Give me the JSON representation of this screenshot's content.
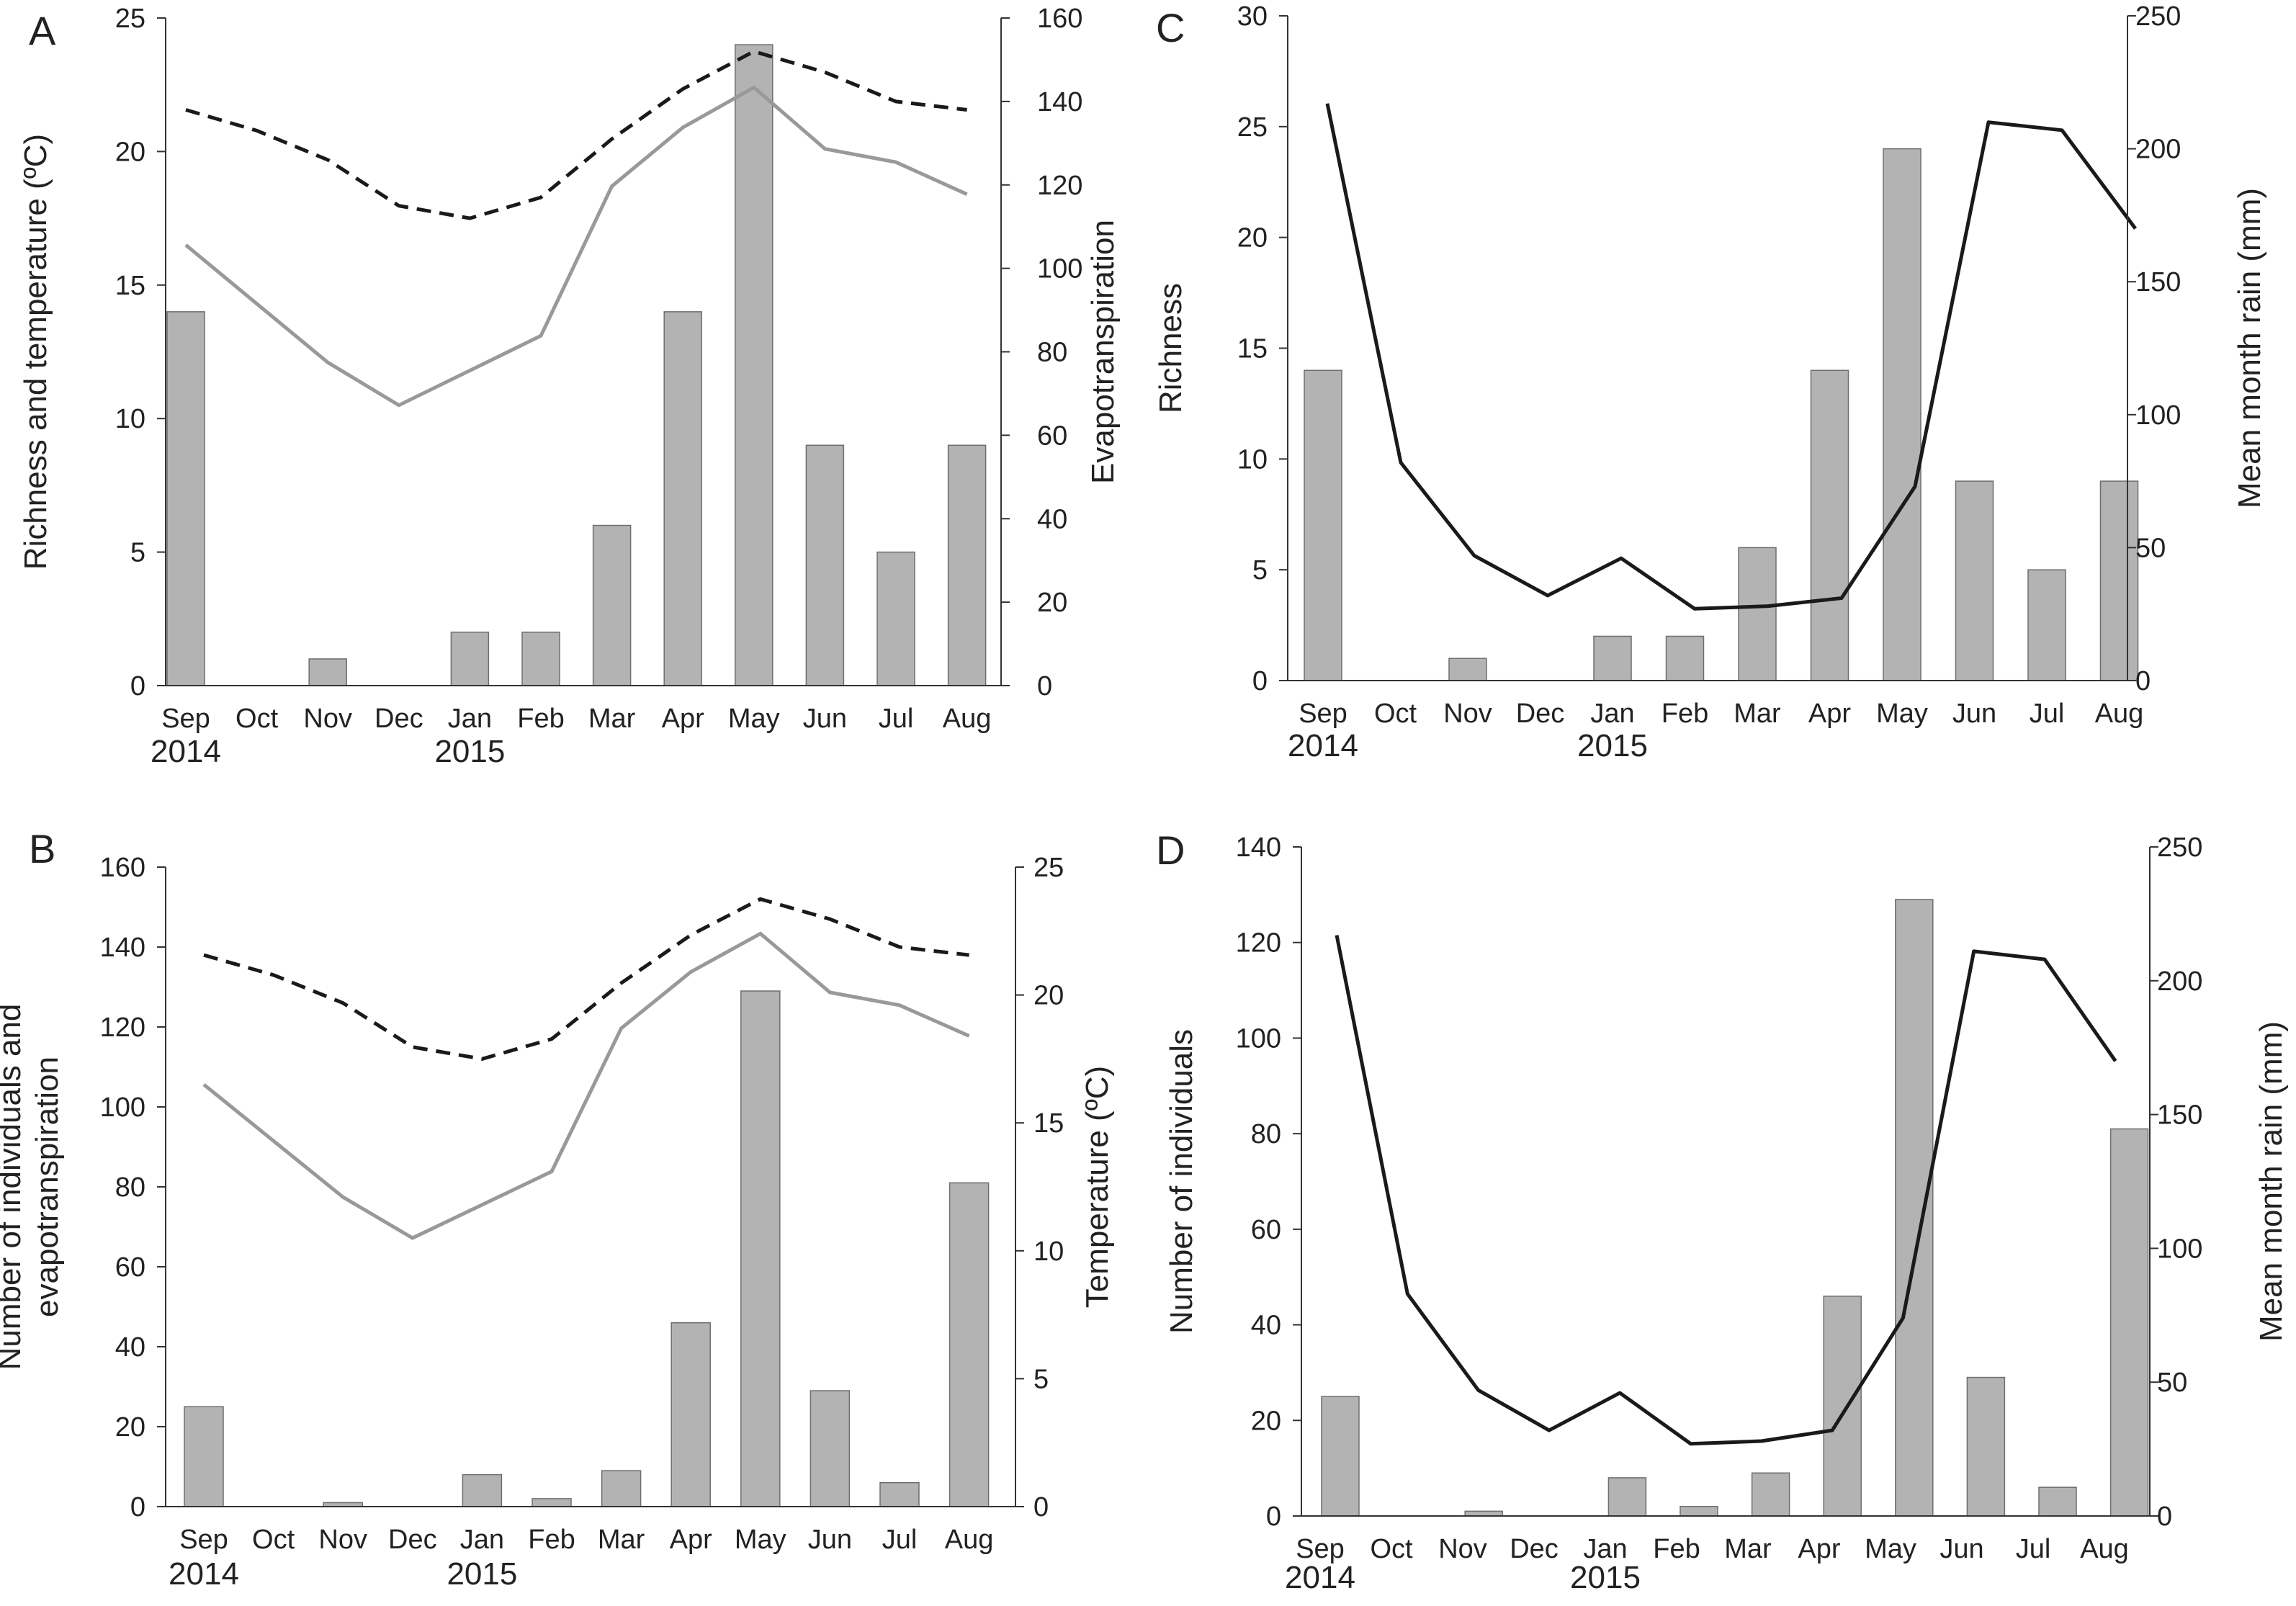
{
  "figure": {
    "style": {
      "bar_fill": "#b3b3b3",
      "bar_stroke": "#6e6e6e",
      "axis_color": "#333333",
      "rain_line": "#1a1a1a",
      "temperature_line": "#999999",
      "evapotranspiration_line": "#1a1a1a"
    }
  },
  "chart_data": [
    {
      "panel": "A",
      "type": "bar",
      "categories": [
        "Sep",
        "Oct",
        "Nov",
        "Dec",
        "Jan",
        "Feb",
        "Mar",
        "Apr",
        "May",
        "Jun",
        "Jul",
        "Aug"
      ],
      "year_labels": [
        {
          "label": "2014",
          "at": "Sep"
        },
        {
          "label": "2015",
          "at": "Jan"
        }
      ],
      "ylabel": "Richness and temperature (ºC)",
      "ylabel_right": "Evapotranspiration",
      "ylim": [
        0,
        25
      ],
      "yticks": [
        0,
        5,
        10,
        15,
        20,
        25
      ],
      "ylim_right": [
        0,
        160
      ],
      "yticks_right": [
        0,
        20,
        40,
        60,
        80,
        100,
        120,
        140,
        160
      ],
      "series": [
        {
          "kind": "bar",
          "axis": "left",
          "values": [
            14,
            0,
            1,
            0,
            2,
            2,
            6,
            14,
            24,
            9,
            5,
            9
          ]
        },
        {
          "kind": "line",
          "axis": "left",
          "style": "solid-gray",
          "values": [
            16.5,
            14.3,
            12.1,
            10.5,
            11.8,
            13.1,
            18.7,
            20.9,
            22.4,
            20.1,
            19.6,
            18.4
          ]
        },
        {
          "kind": "line",
          "axis": "right",
          "style": "dashed-black",
          "values": [
            138,
            133,
            126,
            115,
            112,
            117,
            131,
            143,
            152,
            147,
            140,
            138
          ]
        }
      ]
    },
    {
      "panel": "B",
      "type": "bar",
      "categories": [
        "Sep",
        "Oct",
        "Nov",
        "Dec",
        "Jan",
        "Feb",
        "Mar",
        "Apr",
        "May",
        "Jun",
        "Jul",
        "Aug"
      ],
      "year_labels": [
        {
          "label": "2014",
          "at": "Sep"
        },
        {
          "label": "2015",
          "at": "Jan"
        }
      ],
      "ylabel": "Number of individuals and evapotranspiration",
      "ylabel_right": "Temperature (ºC)",
      "ylim": [
        0,
        160
      ],
      "yticks": [
        0,
        20,
        40,
        60,
        80,
        100,
        120,
        140,
        160
      ],
      "ylim_right": [
        0,
        25
      ],
      "yticks_right": [
        0,
        5,
        10,
        15,
        20,
        25
      ],
      "series": [
        {
          "kind": "bar",
          "axis": "left",
          "values": [
            25,
            0,
            1,
            0,
            8,
            2,
            9,
            46,
            129,
            29,
            6,
            81
          ]
        },
        {
          "kind": "line",
          "axis": "right",
          "style": "solid-gray",
          "values": [
            16.5,
            14.3,
            12.1,
            10.5,
            11.8,
            13.1,
            18.7,
            20.9,
            22.4,
            20.1,
            19.6,
            18.4
          ]
        },
        {
          "kind": "line",
          "axis": "left",
          "style": "dashed-black",
          "values": [
            138,
            133,
            126,
            115,
            112,
            117,
            131,
            143,
            152,
            147,
            140,
            138
          ]
        }
      ]
    },
    {
      "panel": "C",
      "type": "bar",
      "categories": [
        "Sep",
        "Oct",
        "Nov",
        "Dec",
        "Jan",
        "Feb",
        "Mar",
        "Apr",
        "May",
        "Jun",
        "Jul",
        "Aug"
      ],
      "year_labels": [
        {
          "label": "2014",
          "at": "Sep"
        },
        {
          "label": "2015",
          "at": "Jan"
        }
      ],
      "ylabel": "Richness",
      "ylabel_right": "Mean month rain (mm)",
      "ylim": [
        0,
        30
      ],
      "yticks": [
        0,
        5,
        10,
        15,
        20,
        25,
        30
      ],
      "ylim_right": [
        0,
        250
      ],
      "yticks_right": [
        0,
        50,
        100,
        150,
        200,
        250
      ],
      "bars": [
        14,
        0,
        1,
        0,
        2,
        2,
        6,
        14,
        24,
        9,
        5,
        9
      ],
      "rain_mm": [
        217,
        82,
        47,
        32,
        46,
        27,
        28,
        31,
        73,
        210,
        207,
        170
      ]
    },
    {
      "panel": "D",
      "type": "bar",
      "categories": [
        "Sep",
        "Oct",
        "Nov",
        "Dec",
        "Jan",
        "Feb",
        "Mar",
        "Apr",
        "May",
        "Jun",
        "Jul",
        "Aug"
      ],
      "year_labels": [
        {
          "label": "2014",
          "at": "Sep"
        },
        {
          "label": "2015",
          "at": "Jan"
        }
      ],
      "ylabel": "Number of individuals",
      "ylabel_right": "Mean month rain (mm)",
      "ylim": [
        0,
        140
      ],
      "yticks": [
        0,
        20,
        40,
        60,
        80,
        100,
        120,
        140
      ],
      "ylim_right": [
        0,
        250
      ],
      "yticks_right": [
        0,
        50,
        100,
        150,
        200,
        250
      ],
      "bars": [
        25,
        0,
        1,
        0,
        8,
        2,
        9,
        46,
        129,
        29,
        6,
        81
      ],
      "rain_mm": [
        217,
        83,
        47,
        32,
        46,
        27,
        28,
        32,
        74,
        211,
        208,
        170
      ]
    }
  ]
}
